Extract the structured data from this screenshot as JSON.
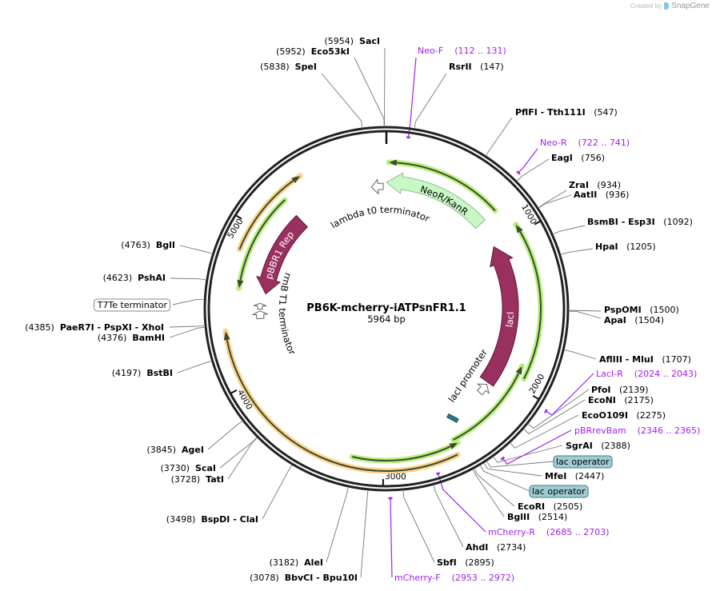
{
  "credit": {
    "created_by": "Created by",
    "brand": "SnapGene"
  },
  "plasmid": {
    "name": "PB6K-mcherry-iATPsnFR1.1",
    "length_label": "5964 bp",
    "length_bp": 5964
  },
  "ticks": [
    "1000",
    "2000",
    "3000",
    "4000",
    "5000"
  ],
  "features": {
    "neor": "NeoR/KanR",
    "lambda": "lambda t0 terminator",
    "laci": "lacI",
    "laci_promoter": "lacI promoter",
    "pbbr1": "pBBR1 Rep",
    "rrnb": "rrnB T1 terminator"
  },
  "sites": [
    {
      "name": "SacI",
      "pos": "(5954)",
      "bp": 5954,
      "kind": "enzyme"
    },
    {
      "name": "Eco53kI",
      "pos": "(5952)",
      "bp": 5952,
      "kind": "enzyme"
    },
    {
      "name": "SpeI",
      "pos": "(5838)",
      "bp": 5838,
      "kind": "enzyme"
    },
    {
      "name": "Neo-F",
      "pos": "(112 .. 131)",
      "bp": 121,
      "kind": "primer"
    },
    {
      "name": "RsrII",
      "pos": "(147)",
      "bp": 147,
      "kind": "enzyme"
    },
    {
      "name": "PflFI - Tth111I",
      "pos": "(547)",
      "bp": 547,
      "kind": "enzyme"
    },
    {
      "name": "Neo-R",
      "pos": "(722 .. 741)",
      "bp": 731,
      "kind": "primer"
    },
    {
      "name": "EagI",
      "pos": "(756)",
      "bp": 756,
      "kind": "enzyme"
    },
    {
      "name": "ZraI",
      "pos": "(934)",
      "bp": 934,
      "kind": "enzyme"
    },
    {
      "name": "AatII",
      "pos": "(936)",
      "bp": 936,
      "kind": "enzyme"
    },
    {
      "name": "BsmBI - Esp3I",
      "pos": "(1092)",
      "bp": 1092,
      "kind": "enzyme"
    },
    {
      "name": "HpaI",
      "pos": "(1205)",
      "bp": 1205,
      "kind": "enzyme"
    },
    {
      "name": "PspOMI",
      "pos": "(1500)",
      "bp": 1500,
      "kind": "enzyme"
    },
    {
      "name": "ApaI",
      "pos": "(1504)",
      "bp": 1504,
      "kind": "enzyme"
    },
    {
      "name": "AflIII - MluI",
      "pos": "(1707)",
      "bp": 1707,
      "kind": "enzyme"
    },
    {
      "name": "LacI-R",
      "pos": "(2024 .. 2043)",
      "bp": 2033,
      "kind": "primer"
    },
    {
      "name": "PfoI",
      "pos": "(2139)",
      "bp": 2139,
      "kind": "enzyme"
    },
    {
      "name": "EcoNI",
      "pos": "(2175)",
      "bp": 2175,
      "kind": "enzyme"
    },
    {
      "name": "EcoO109I",
      "pos": "(2275)",
      "bp": 2275,
      "kind": "enzyme"
    },
    {
      "name": "pBRrevBam",
      "pos": "(2346 .. 2365)",
      "bp": 2355,
      "kind": "primer"
    },
    {
      "name": "SgrAI",
      "pos": "(2388)",
      "bp": 2388,
      "kind": "enzyme"
    },
    {
      "name": "lac operator",
      "pos": "",
      "bp": 2430,
      "kind": "box-teal"
    },
    {
      "name": "MfeI",
      "pos": "(2447)",
      "bp": 2447,
      "kind": "enzyme"
    },
    {
      "name": "lac operator",
      "pos": "",
      "bp": 2470,
      "kind": "box-teal"
    },
    {
      "name": "EcoRI",
      "pos": "(2505)",
      "bp": 2505,
      "kind": "enzyme"
    },
    {
      "name": "BglII",
      "pos": "(2514)",
      "bp": 2514,
      "kind": "enzyme"
    },
    {
      "name": "mCherry-R",
      "pos": "(2685 .. 2703)",
      "bp": 2694,
      "kind": "primer"
    },
    {
      "name": "AhdI",
      "pos": "(2734)",
      "bp": 2734,
      "kind": "enzyme"
    },
    {
      "name": "SbfI",
      "pos": "(2895)",
      "bp": 2895,
      "kind": "enzyme"
    },
    {
      "name": "mCherry-F",
      "pos": "(2953 .. 2972)",
      "bp": 2962,
      "kind": "primer"
    },
    {
      "name": "BbvCI - Bpu10I",
      "pos": "(3078)",
      "bp": 3078,
      "kind": "enzyme"
    },
    {
      "name": "AleI",
      "pos": "(3182)",
      "bp": 3182,
      "kind": "enzyme"
    },
    {
      "name": "BspDI - ClaI",
      "pos": "(3498)",
      "bp": 3498,
      "kind": "enzyme"
    },
    {
      "name": "ScaI",
      "pos": "(3730)",
      "bp": 3730,
      "kind": "enzyme"
    },
    {
      "name": "TatI",
      "pos": "(3728)",
      "bp": 3728,
      "kind": "enzyme"
    },
    {
      "name": "AgeI",
      "pos": "(3845)",
      "bp": 3845,
      "kind": "enzyme"
    },
    {
      "name": "BstBI",
      "pos": "(4197)",
      "bp": 4197,
      "kind": "enzyme"
    },
    {
      "name": "BamHI",
      "pos": "(4376)",
      "bp": 4376,
      "kind": "enzyme"
    },
    {
      "name": "PaeR7I - PspXI - XhoI",
      "pos": "(4385)",
      "bp": 4385,
      "kind": "enzyme"
    },
    {
      "name": "T7Te terminator",
      "pos": "",
      "bp": 4520,
      "kind": "box-white"
    },
    {
      "name": "PshAI",
      "pos": "(4623)",
      "bp": 4623,
      "kind": "enzyme"
    },
    {
      "name": "BglI",
      "pos": "(4763)",
      "bp": 4763,
      "kind": "enzyme"
    }
  ],
  "colors": {
    "primer": "#a020f0",
    "maroon": "#9a3060",
    "neo": "#c9f8c6",
    "green_glow": "#b8f07c",
    "orange_glow": "#fbd38a",
    "teal_box": "#9fcbd2"
  }
}
